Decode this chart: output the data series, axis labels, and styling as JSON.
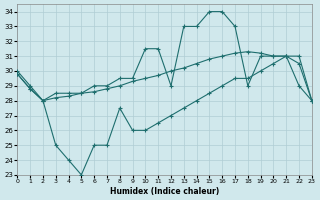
{
  "xlabel": "Humidex (Indice chaleur)",
  "xlim": [
    0,
    23
  ],
  "ylim": [
    23,
    34.5
  ],
  "yticks": [
    23,
    24,
    25,
    26,
    27,
    28,
    29,
    30,
    31,
    32,
    33,
    34
  ],
  "xticks": [
    0,
    1,
    2,
    3,
    4,
    5,
    6,
    7,
    8,
    9,
    10,
    11,
    12,
    13,
    14,
    15,
    16,
    17,
    18,
    19,
    20,
    21,
    22,
    23
  ],
  "background_color": "#d0e8ec",
  "grid_color": "#b0cdd4",
  "line_color": "#1e6e6e",
  "series_jagged": {
    "x": [
      0,
      1,
      2,
      3,
      4,
      5,
      6,
      7,
      8,
      9,
      10,
      11,
      12,
      13,
      14,
      15,
      16,
      17,
      18,
      19,
      20,
      21,
      22,
      23
    ],
    "y": [
      30.0,
      29.0,
      28.0,
      28.5,
      28.5,
      28.5,
      29.0,
      29.0,
      29.5,
      29.5,
      31.5,
      31.5,
      29.0,
      33.0,
      33.0,
      34.0,
      34.0,
      33.0,
      29.0,
      31.0,
      31.0,
      31.0,
      29.0,
      28.0
    ]
  },
  "series_smooth": {
    "x": [
      0,
      1,
      2,
      3,
      4,
      5,
      6,
      7,
      8,
      9,
      10,
      11,
      12,
      13,
      14,
      15,
      16,
      17,
      18,
      19,
      20,
      21,
      22,
      23
    ],
    "y": [
      29.8,
      28.8,
      28.0,
      28.2,
      28.3,
      28.5,
      28.6,
      28.8,
      29.0,
      29.3,
      29.5,
      29.7,
      30.0,
      30.2,
      30.5,
      30.8,
      31.0,
      31.2,
      31.3,
      31.2,
      31.0,
      31.0,
      30.5,
      28.0
    ]
  },
  "series_bottom": {
    "x": [
      0,
      1,
      2,
      3,
      4,
      5,
      6,
      7,
      8,
      9,
      10,
      11,
      12,
      13,
      14,
      15,
      16,
      17,
      18,
      19,
      20,
      21,
      22,
      23
    ],
    "y": [
      29.8,
      28.8,
      28.0,
      25.0,
      24.0,
      23.0,
      25.0,
      25.0,
      27.5,
      26.0,
      26.0,
      26.5,
      27.0,
      27.5,
      28.0,
      28.5,
      29.0,
      29.5,
      29.5,
      30.0,
      30.5,
      31.0,
      31.0,
      28.0
    ]
  }
}
